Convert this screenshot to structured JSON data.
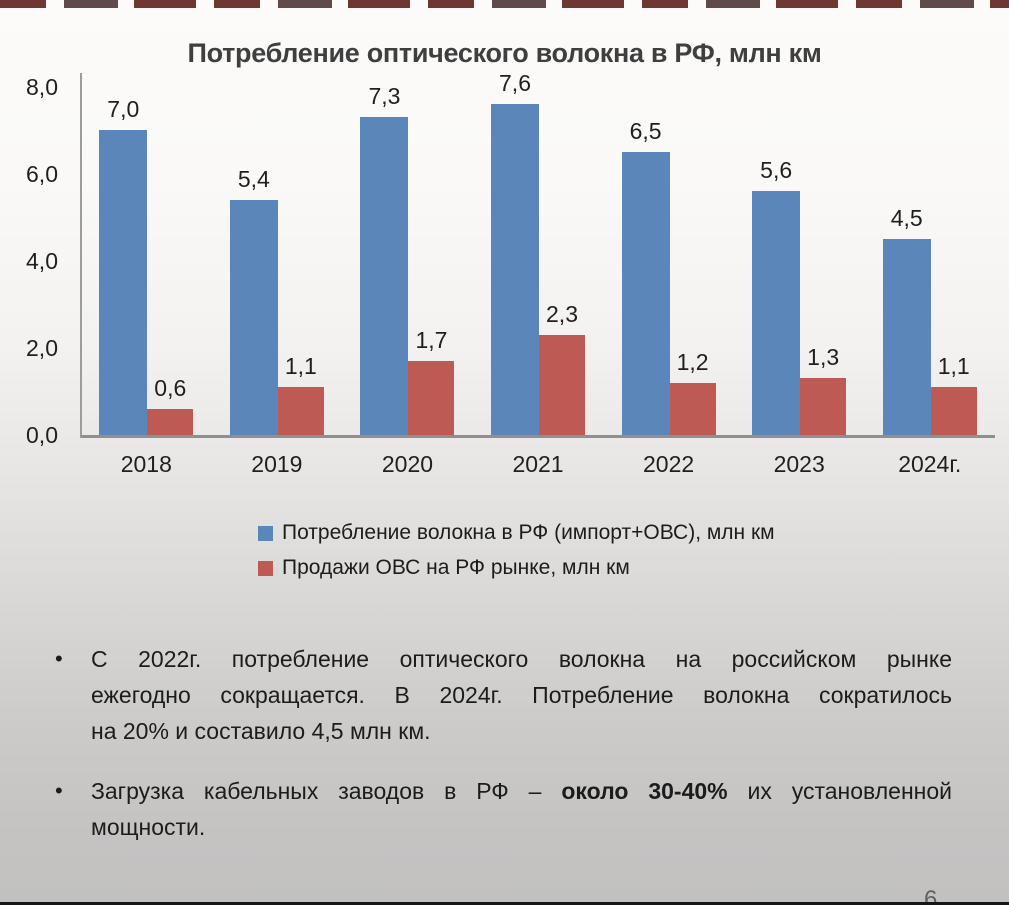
{
  "chart_data": {
    "type": "bar",
    "title": "Потребление оптического волокна в РФ, млн км",
    "categories": [
      "2018",
      "2019",
      "2020",
      "2021",
      "2022",
      "2023",
      "2024г."
    ],
    "series": [
      {
        "name": "Потребление волокна в РФ (импорт+ОВС), млн км",
        "color": "#5b86ba",
        "values": [
          7.0,
          5.4,
          7.3,
          7.6,
          6.5,
          5.6,
          4.5
        ],
        "labels": [
          "7,0",
          "5,4",
          "7,3",
          "7,6",
          "6,5",
          "5,6",
          "4,5"
        ]
      },
      {
        "name": "Продажи ОВС на РФ рынке, млн км",
        "color": "#bd5a53",
        "values": [
          0.6,
          1.1,
          1.7,
          2.3,
          1.2,
          1.3,
          1.1
        ],
        "labels": [
          "0,6",
          "1,1",
          "1,7",
          "2,3",
          "1,2",
          "1,3",
          "1,1"
        ]
      }
    ],
    "xlabel": "",
    "ylabel": "",
    "ylim": [
      0,
      8
    ],
    "y_ticks": [
      "8,0",
      "6,0",
      "4,0",
      "2,0",
      "0,0"
    ],
    "grid": false,
    "legend_position": "bottom"
  },
  "bullets": {
    "marker": "•",
    "b1": {
      "lines": [
        "С 2022г. потребление оптического волокна на российском рынке",
        "ежегодно сокращается. В 2024г. Потребление волокна сократилось",
        "на 20% и составило 4,5 млн км."
      ]
    },
    "b2": {
      "prefix": "Загрузка кабельных заводов в РФ – ",
      "bold": "около 30-40%",
      "suffix": " их установленной",
      "line2": "мощности."
    }
  },
  "page_number": "6"
}
